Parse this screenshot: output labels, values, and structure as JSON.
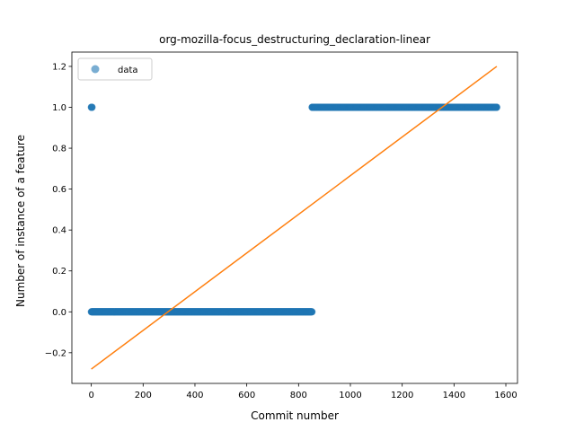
{
  "chart_data": {
    "type": "scatter",
    "title": "org-mozilla-focus_destructuring_declaration-linear",
    "xlabel": "Commit number",
    "ylabel": "Number of instance of a feature",
    "xlim": [
      -75,
      1645
    ],
    "ylim": [
      -0.35,
      1.27
    ],
    "xticks": [
      0,
      200,
      400,
      600,
      800,
      1000,
      1200,
      1400,
      1600
    ],
    "yticks": [
      -0.2,
      0.0,
      0.2,
      0.4,
      0.6,
      0.8,
      1.0,
      1.2
    ],
    "ytick_labels": [
      "−0.2",
      "0.0",
      "0.2",
      "0.4",
      "0.6",
      "0.8",
      "1.0",
      "1.2"
    ],
    "grid": false,
    "legend": {
      "position": "top-left",
      "entries": [
        "data"
      ]
    },
    "series": [
      {
        "name": "data",
        "kind": "scatter",
        "color": "#1f77b4",
        "alpha": 0.6,
        "segments": [
          {
            "x_start": 0,
            "x_end": 3,
            "y": 1.0
          },
          {
            "x_start": 0,
            "x_end": 852,
            "y": 0.0
          },
          {
            "x_start": 852,
            "x_end": 1565,
            "y": 1.0
          }
        ]
      },
      {
        "kind": "line",
        "color": "#ff7f0e",
        "points": [
          [
            0,
            -0.28
          ],
          [
            1565,
            1.2
          ]
        ]
      }
    ]
  }
}
